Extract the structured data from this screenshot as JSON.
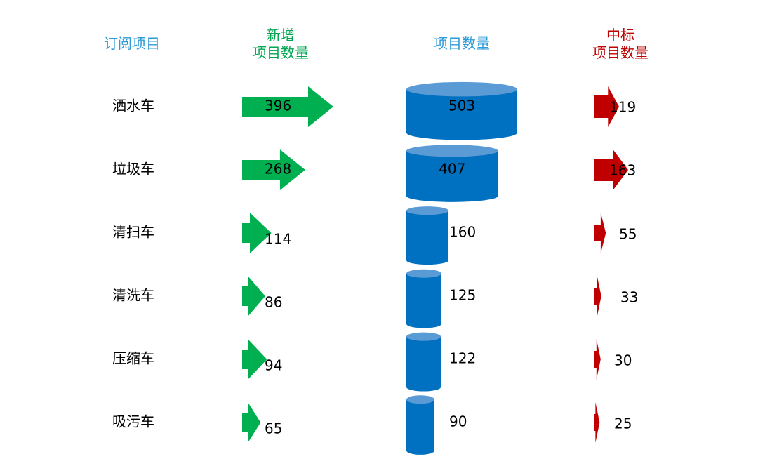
{
  "colors": {
    "category_header": "#2E9BD6",
    "new_header": "#00A651",
    "total_header": "#2E9BD6",
    "won_header": "#C00000",
    "new_arrow": "#00B050",
    "won_arrow": "#C00000",
    "cylinder_side": "#0070C0",
    "cylinder_top": "#5B9BD5",
    "text": "#000000"
  },
  "headers": {
    "category": "订阅项目",
    "new_line1": "新增",
    "new_line2": "项目数量",
    "total": "项目数量",
    "won_line1": "中标",
    "won_line2": "项目数量"
  },
  "chart_data": {
    "type": "table",
    "categories": [
      "洒水车",
      "垃圾车",
      "清扫车",
      "清洗车",
      "压缩车",
      "吸污车"
    ],
    "series": [
      {
        "name": "新增 项目数量",
        "shape": "green-arrow",
        "values": [
          396,
          268,
          114,
          86,
          94,
          65
        ]
      },
      {
        "name": "项目数量",
        "shape": "blue-cylinder",
        "values": [
          503,
          407,
          160,
          125,
          122,
          90
        ]
      },
      {
        "name": "中标 项目数量",
        "shape": "red-arrow",
        "values": [
          119,
          163,
          55,
          33,
          30,
          25
        ]
      }
    ]
  }
}
